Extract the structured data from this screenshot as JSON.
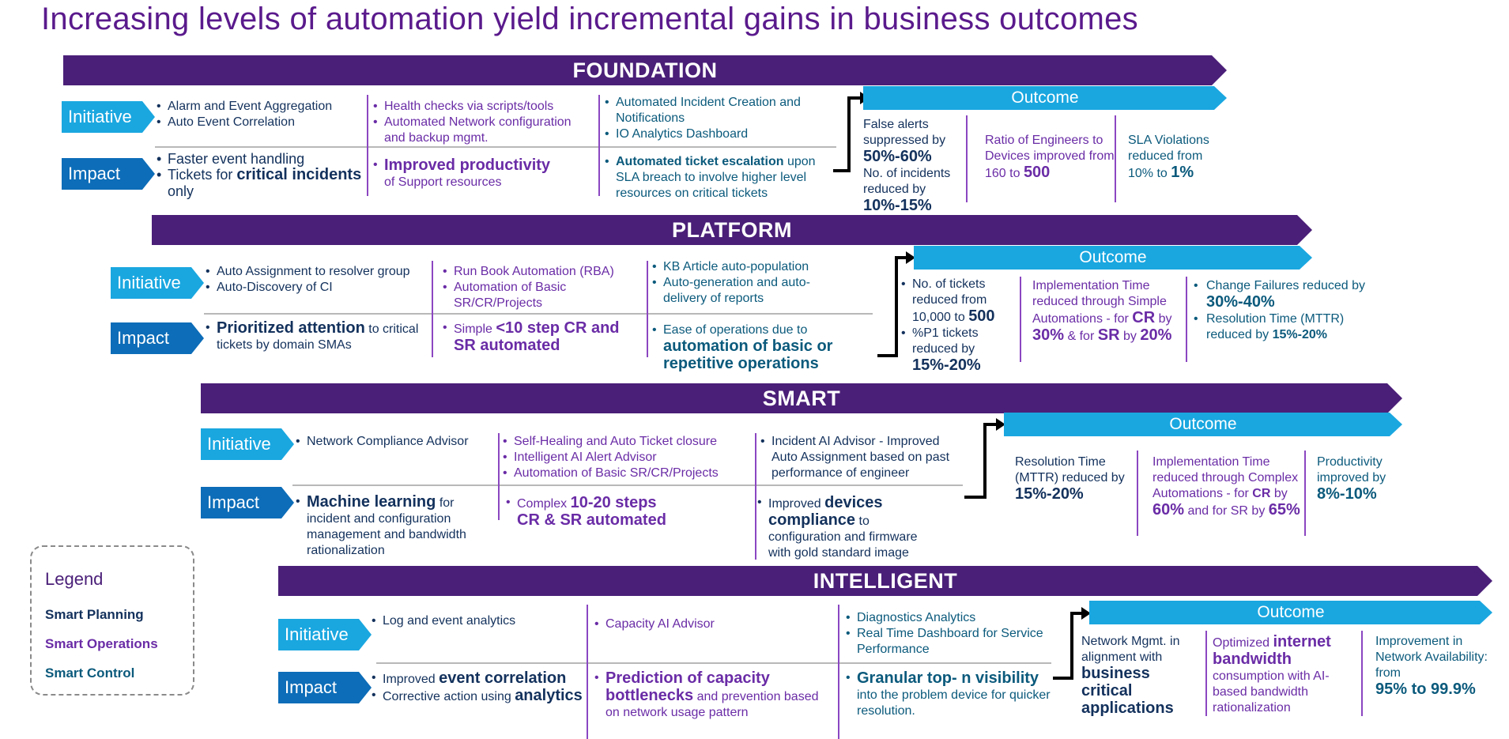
{
  "title": "Increasing levels of automation yield incremental gains in business outcomes",
  "labels": {
    "initiative": "Initiative",
    "impact": "Impact",
    "outcome": "Outcome"
  },
  "colors": {
    "band": "#4a1f78",
    "initiative": "#1aa7e0",
    "impact": "#0d6db8",
    "outcome": "#1aa7e0",
    "smart_planning": "#13315c",
    "smart_operations": "#6a2ca6",
    "smart_control": "#0b5a7c"
  },
  "legend": {
    "title": "Legend",
    "items": [
      "Smart Planning",
      "Smart Operations",
      "Smart Control"
    ]
  },
  "stages": [
    {
      "name": "FOUNDATION",
      "initiatives": [
        [
          "Alarm and Event Aggregation",
          "Auto Event Correlation"
        ],
        [
          "Health checks via scripts/tools",
          "Automated Network configuration and backup mgmt."
        ],
        [
          "Automated Incident Creation and Notifications",
          "IO Analytics Dashboard"
        ]
      ],
      "impacts": [
        [
          {
            "t": "Faster event handling"
          },
          {
            "t": "Tickets for ",
            "b": "critical incidents",
            "t2": " only"
          }
        ],
        [
          {
            "b": "Improved productivity",
            "t2": "of Support resources"
          }
        ],
        [
          {
            "b": "Automated ticket escalation",
            "t2": " upon SLA breach to involve higher level resources on critical tickets"
          }
        ]
      ],
      "outcomes": [
        {
          "pre": "False alerts suppressed by",
          "val": "50%-60%",
          "pre2": "No. of incidents reduced by",
          "val2": "10%-15%"
        },
        {
          "pre": "Ratio of Engineers to Devices improved from 160 to",
          "val": "500"
        },
        {
          "pre": "SLA Violations reduced from 10% to",
          "val": "1%"
        }
      ]
    },
    {
      "name": "PLATFORM",
      "initiatives": [
        [
          "Auto Assignment to resolver group",
          "Auto-Discovery of CI"
        ],
        [
          "Run Book Automation (RBA)",
          "Automation of Basic SR/CR/Projects"
        ],
        [
          "KB Article auto-population",
          "Auto-generation and auto-delivery of reports"
        ]
      ],
      "impacts": [
        [
          {
            "b": "Prioritized attention",
            "t2": " to critical tickets by domain SMAs"
          }
        ],
        [
          {
            "t": "Simple ",
            "b": "<10 step CR and SR automated"
          }
        ],
        [
          {
            "t": "Ease of operations due to ",
            "b": "automation of basic or repetitive operations"
          }
        ]
      ],
      "outcomes": [
        {
          "pre": "No. of tickets reduced from 10,000 to",
          "val": "500",
          "pre2": "%P1 tickets reduced by",
          "val2": "15%-20%"
        },
        {
          "pre": "Implementation Time reduced through Simple Automations - for",
          "val": "CR",
          "mid": "by",
          "val2": "30%",
          "mid2": "& for",
          "val3": "SR",
          "mid3": "by",
          "val4": "20%"
        },
        {
          "pre": "Change Failures reduced by",
          "val": "30%-40%",
          "pre2": "Resolution Time (MTTR) reduced by",
          "val2": "15%-20%"
        }
      ]
    },
    {
      "name": "SMART",
      "initiatives": [
        [
          "Network Compliance Advisor"
        ],
        [
          "Self-Healing and Auto Ticket closure",
          "Intelligent AI Alert Advisor",
          "Automation of Basic SR/CR/Projects"
        ],
        [
          "Incident AI Advisor - Improved Auto Assignment based on past performance of engineer"
        ]
      ],
      "impacts": [
        [
          {
            "b": "Machine learning",
            "t2": " for incident and configuration management and bandwidth rationalization"
          }
        ],
        [
          {
            "t": "Complex ",
            "b": "10-20 steps CR & SR automated"
          }
        ],
        [
          {
            "t": "Improved ",
            "b": "devices compliance",
            "t2": " to configuration and firmware with gold standard image"
          }
        ]
      ],
      "outcomes": [
        {
          "pre": "Resolution Time (MTTR) reduced by",
          "val": "15%-20%"
        },
        {
          "pre": "Implementation Time reduced through Complex Automations - for",
          "val": "CR",
          "mid": "by",
          "val2": "60%",
          "mid2": "and for SR by",
          "val3": "65%"
        },
        {
          "pre": "Productivity improved by",
          "val": "8%-10%"
        }
      ]
    },
    {
      "name": "INTELLIGENT",
      "initiatives": [
        [
          "Log and event analytics"
        ],
        [
          "Capacity AI Advisor"
        ],
        [
          "Diagnostics Analytics",
          "Real Time Dashboard for Service Performance"
        ]
      ],
      "impacts": [
        [
          {
            "t": "Improved ",
            "b": "event correlation"
          },
          {
            "t": "Corrective action using ",
            "b": "analytics"
          }
        ],
        [
          {
            "b": "Prediction of capacity bottlenecks",
            "t2": " and prevention based on network usage pattern"
          }
        ],
        [
          {
            "b": "Granular top- n visibility",
            "t2": " into the problem device for quicker resolution."
          }
        ]
      ],
      "outcomes": [
        {
          "pre": "Network Mgmt. in alignment with",
          "val": "business critical applications"
        },
        {
          "pre": "Optimized",
          "val": "internet bandwidth",
          "pre2": "consumption with AI-based bandwidth rationalization"
        },
        {
          "pre": "Improvement in Network Availability: from",
          "val": "95% to 99.9%"
        }
      ]
    }
  ]
}
